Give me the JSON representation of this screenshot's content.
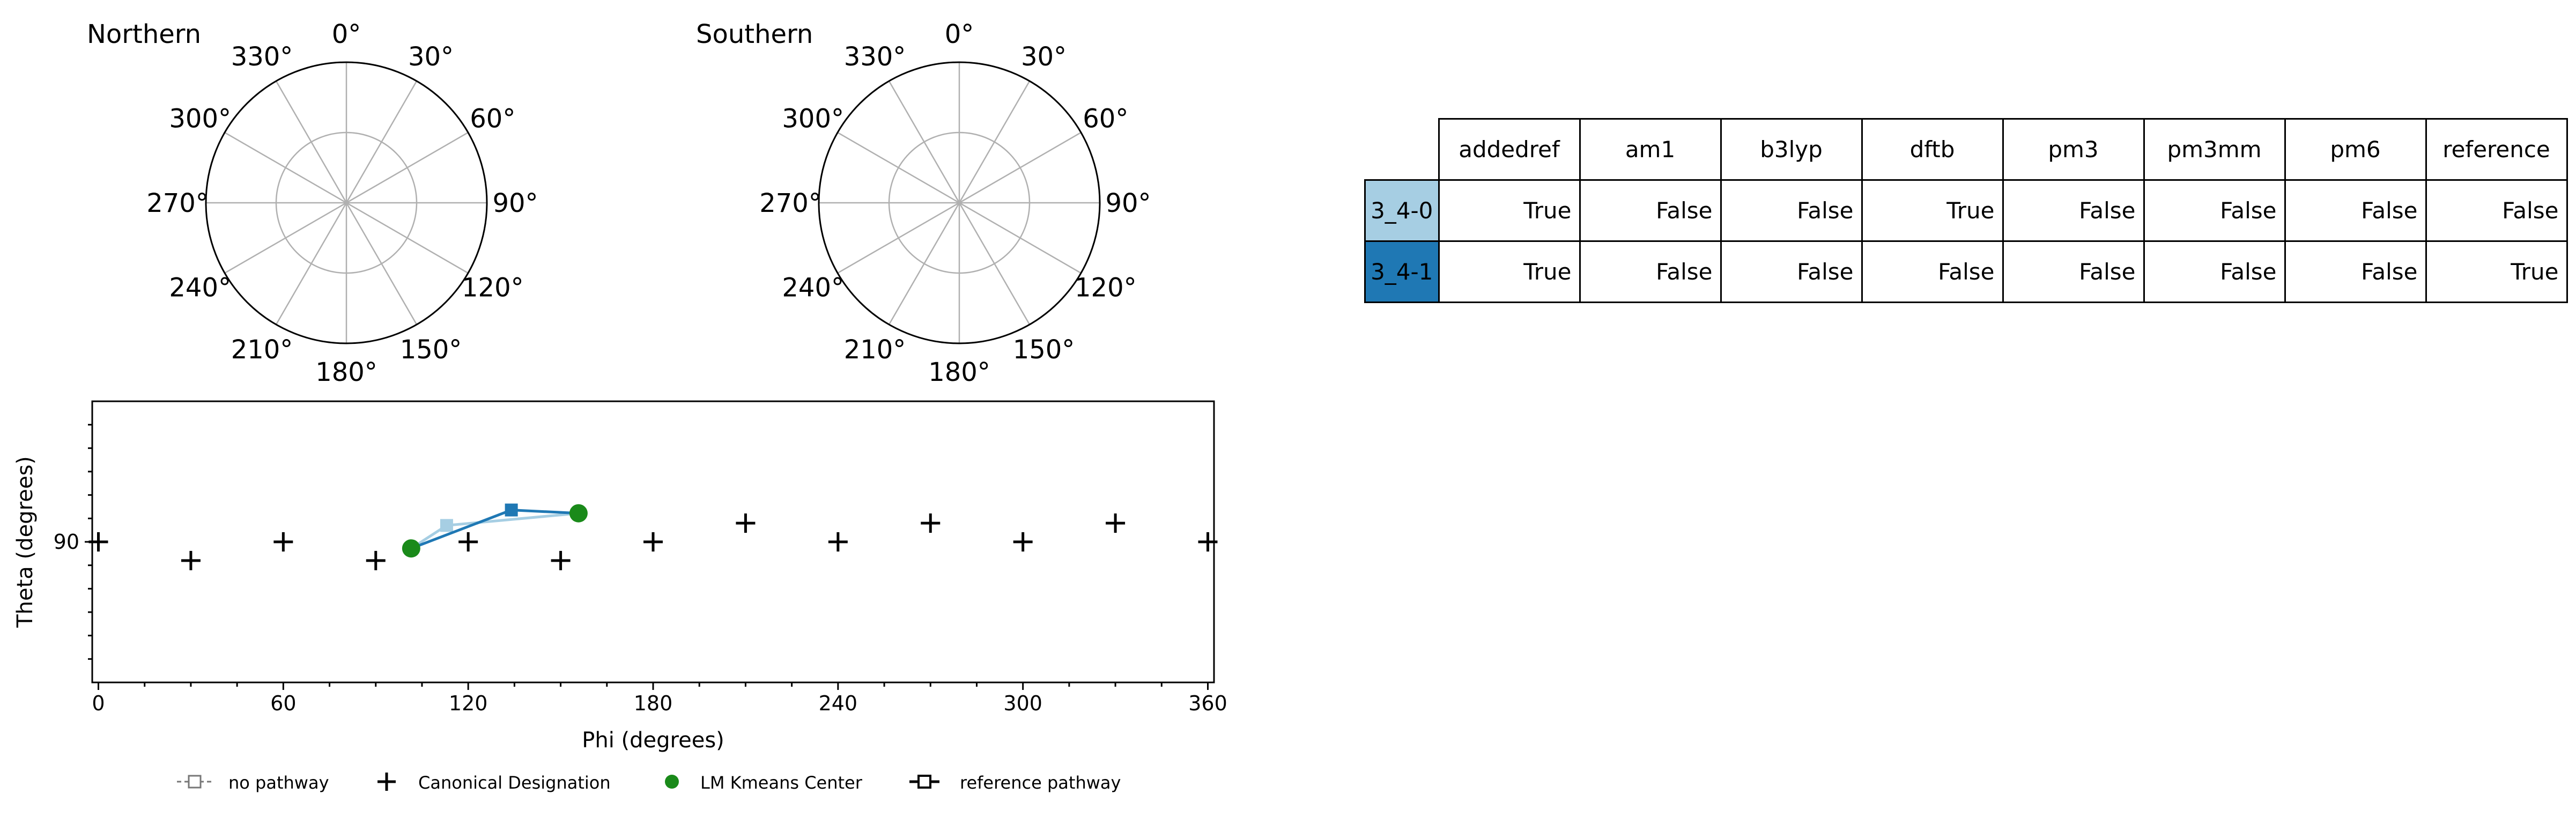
{
  "polar": [
    {
      "title": "Northern",
      "angles": [
        "0°",
        "30°",
        "60°",
        "90°",
        "120°",
        "150°",
        "180°",
        "210°",
        "240°",
        "270°",
        "300°",
        "330°"
      ]
    },
    {
      "title": "Southern",
      "angles": [
        "0°",
        "30°",
        "60°",
        "90°",
        "120°",
        "150°",
        "180°",
        "210°",
        "240°",
        "270°",
        "300°",
        "330°"
      ]
    }
  ],
  "chart_data": {
    "type": "scatter",
    "xlabel": "Phi (degrees)",
    "ylabel": "Theta (degrees)",
    "xlim": [
      -2,
      362
    ],
    "ylim": [
      60,
      120
    ],
    "xticks": [
      0,
      60,
      120,
      180,
      240,
      300,
      360
    ],
    "xtick_labels": [
      "0",
      "60",
      "120",
      "180",
      "240",
      "300",
      "360"
    ],
    "yticks": [
      90
    ],
    "ytick_labels": [
      "90"
    ],
    "series": [
      {
        "name": "Canonical Designation",
        "marker": "plus",
        "color": "#000000",
        "points": [
          [
            0,
            90
          ],
          [
            30,
            86
          ],
          [
            60,
            90
          ],
          [
            90,
            86
          ],
          [
            120,
            90
          ],
          [
            150,
            86
          ],
          [
            180,
            90
          ],
          [
            210,
            94
          ],
          [
            240,
            90
          ],
          [
            270,
            94
          ],
          [
            300,
            90
          ],
          [
            330,
            94
          ],
          [
            360,
            90
          ]
        ]
      },
      {
        "name": "LM Kmeans Center",
        "marker": "circle",
        "color": "#1a8a1a",
        "points": [
          [
            101.5,
            88.6
          ],
          [
            155.8,
            96.1
          ]
        ]
      }
    ],
    "pathways": [
      {
        "label": "3_4-0",
        "color": "#a6cee3",
        "points": [
          [
            101.5,
            88.6
          ],
          [
            113,
            93.5
          ],
          [
            155.8,
            96.1
          ]
        ],
        "square_at": 1
      },
      {
        "label": "3_4-1",
        "color": "#1f78b4",
        "points": [
          [
            101.5,
            88.6
          ],
          [
            134,
            96.8
          ],
          [
            155.8,
            96.1
          ]
        ],
        "square_at": 1
      }
    ],
    "legend": {
      "placement": "bottom",
      "entries": [
        "no pathway",
        "Canonical Designation",
        "LM Kmeans Center",
        "reference pathway"
      ]
    },
    "grid": false
  },
  "table": {
    "columns": [
      "addedref",
      "am1",
      "b3lyp",
      "dftb",
      "pm3",
      "pm3mm",
      "pm6",
      "reference"
    ],
    "rows": [
      {
        "label": "3_4-0",
        "color": "#a6cee3",
        "values": [
          "True",
          "False",
          "False",
          "True",
          "False",
          "False",
          "False",
          "False"
        ]
      },
      {
        "label": "3_4-1",
        "color": "#1f78b4",
        "values": [
          "True",
          "False",
          "False",
          "False",
          "False",
          "False",
          "False",
          "True"
        ]
      }
    ]
  }
}
